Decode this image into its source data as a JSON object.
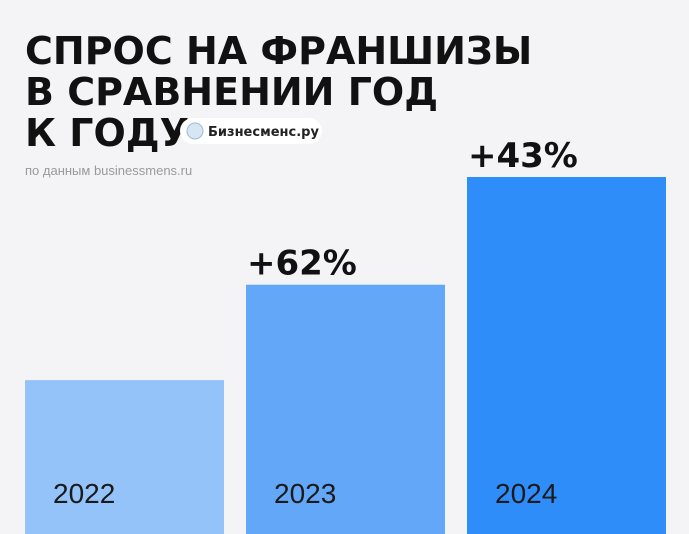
{
  "chart_data": {
    "type": "bar",
    "title": [
      "СПРОС НА ФРАНШИЗЫ",
      "В СРАВНЕНИИ ГОД",
      "К ГОДУ"
    ],
    "logo": "Бизнесменс.ру",
    "subtitle": "по данным businessmens.ru",
    "categories": [
      "2022",
      "2023",
      "2024"
    ],
    "values": [
      100,
      162,
      232
    ],
    "growth_labels": [
      null,
      "+62%",
      "+43%"
    ],
    "colors": [
      "#93c3f8",
      "#63a8f8",
      "#2f8dfa"
    ]
  }
}
